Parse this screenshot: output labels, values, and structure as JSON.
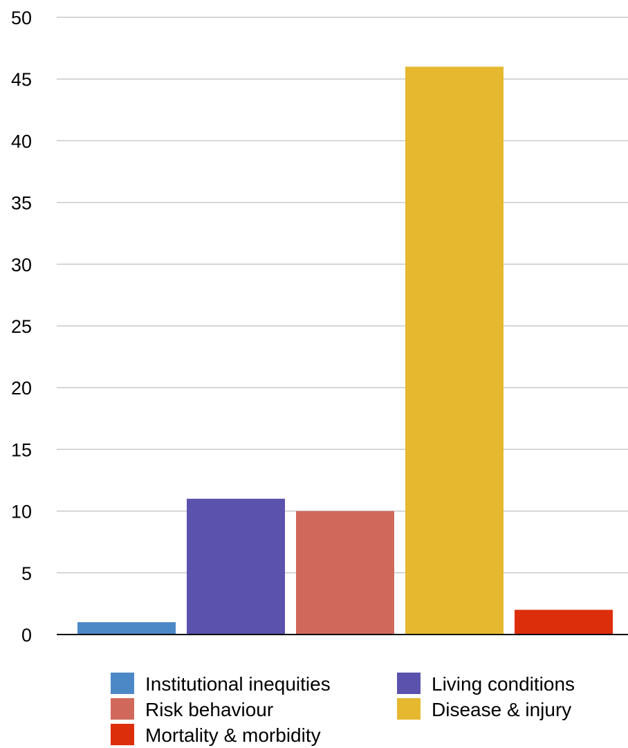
{
  "chart_data": {
    "type": "bar",
    "title": "",
    "xlabel": "",
    "ylabel": "",
    "ylim": [
      0,
      50
    ],
    "yticks": [
      0,
      5,
      10,
      15,
      20,
      25,
      30,
      35,
      40,
      45,
      50
    ],
    "grid": true,
    "legend_position": "bottom",
    "series": [
      {
        "name": "Institutional inequities",
        "value": 1,
        "color": "#4d88c6"
      },
      {
        "name": "Living conditions",
        "value": 11,
        "color": "#5a52ad"
      },
      {
        "name": "Risk behaviour",
        "value": 10,
        "color": "#d0695b"
      },
      {
        "name": "Disease & injury",
        "value": 46,
        "color": "#e6b830"
      },
      {
        "name": "Mortality & morbidity",
        "value": 2,
        "color": "#dd2e0c"
      }
    ]
  }
}
